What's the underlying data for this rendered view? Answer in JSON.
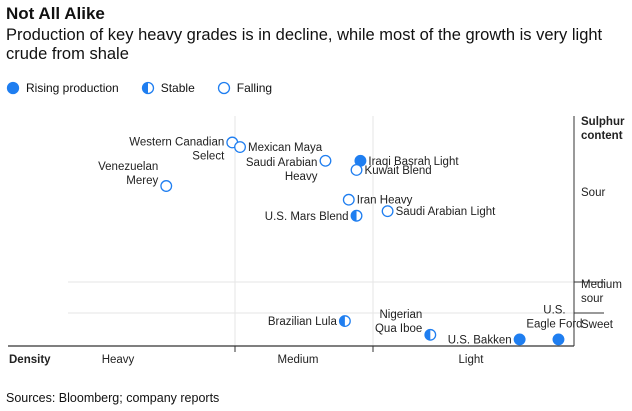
{
  "title": "Not All Alike",
  "subtitle": "Production of key heavy grades is in decline, while most of the growth is very light crude from shale",
  "source": "Sources: Bloomberg; company reports",
  "colors": {
    "accent": "#1f7ef0",
    "grid": "#e6e6e6",
    "axis": "#333333",
    "text": "#222222"
  },
  "legend": [
    {
      "status": "rising",
      "label": "Rising production"
    },
    {
      "status": "stable",
      "label": "Stable"
    },
    {
      "status": "falling",
      "label": "Falling"
    }
  ],
  "chart_data": {
    "type": "scatter",
    "x_axis": {
      "label": "Density",
      "categories": [
        "Heavy",
        "Medium",
        "Light"
      ]
    },
    "y_axis": {
      "label": "Sulphur content",
      "label_lines": [
        "Sulphur",
        "content"
      ],
      "categories": [
        "Sour",
        "Medium sour",
        "Sweet"
      ],
      "category_lines": [
        [
          "Sour"
        ],
        [
          "Medium",
          "sour"
        ],
        [
          "Sweet"
        ]
      ]
    },
    "grid": true,
    "legend_position": "top-left",
    "points": [
      {
        "name": "Western Canadian Select",
        "lines": [
          "Western Canadian",
          "Select"
        ],
        "density": 0.32,
        "sulphur": 0.88,
        "status": "falling",
        "label_side": "left"
      },
      {
        "name": "Mexican Maya",
        "lines": [
          "Mexican Maya"
        ],
        "density": 0.34,
        "sulphur": 0.86,
        "status": "falling",
        "label_side": "right"
      },
      {
        "name": "Venezuelan Merey",
        "lines": [
          "Venezuelan",
          "Merey"
        ],
        "density": 0.15,
        "sulphur": 0.69,
        "status": "falling",
        "label_side": "left"
      },
      {
        "name": "Saudi Arabian Heavy",
        "lines": [
          "Saudi Arabian",
          "Heavy"
        ],
        "density": 0.56,
        "sulphur": 0.8,
        "status": "falling",
        "label_side": "left"
      },
      {
        "name": "Iraqi Basrah Light",
        "lines": [
          "Iraqi Basrah Light"
        ],
        "density": 0.65,
        "sulphur": 0.8,
        "status": "rising",
        "label_side": "right"
      },
      {
        "name": "Kuwait Blend",
        "lines": [
          "Kuwait Blend"
        ],
        "density": 0.64,
        "sulphur": 0.76,
        "status": "falling",
        "label_side": "right"
      },
      {
        "name": "Iran Heavy",
        "lines": [
          "Iran Heavy"
        ],
        "density": 0.62,
        "sulphur": 0.63,
        "status": "falling",
        "label_side": "right"
      },
      {
        "name": "Saudi Arabian Light",
        "lines": [
          "Saudi Arabian Light"
        ],
        "density": 0.72,
        "sulphur": 0.58,
        "status": "falling",
        "label_side": "right"
      },
      {
        "name": "U.S. Mars Blend",
        "lines": [
          "U.S. Mars Blend"
        ],
        "density": 0.64,
        "sulphur": 0.56,
        "status": "stable",
        "label_side": "left"
      },
      {
        "name": "Brazilian Lula",
        "lines": [
          "Brazilian Lula"
        ],
        "density": 0.61,
        "sulphur": 0.1,
        "status": "stable",
        "label_side": "left"
      },
      {
        "name": "Nigerian Qua Iboe",
        "lines": [
          "Nigerian",
          "Qua Iboe"
        ],
        "density": 0.83,
        "sulphur": 0.04,
        "status": "stable",
        "label_side": "left"
      },
      {
        "name": "U.S. Bakken",
        "lines": [
          "U.S. Bakken"
        ],
        "density": 1.06,
        "sulphur": 0.02,
        "status": "rising",
        "label_side": "left"
      },
      {
        "name": "U.S. Eagle Ford",
        "lines": [
          "U.S.",
          "Eagle Ford"
        ],
        "density": 1.16,
        "sulphur": 0.02,
        "status": "rising",
        "label_side": "above"
      }
    ]
  }
}
